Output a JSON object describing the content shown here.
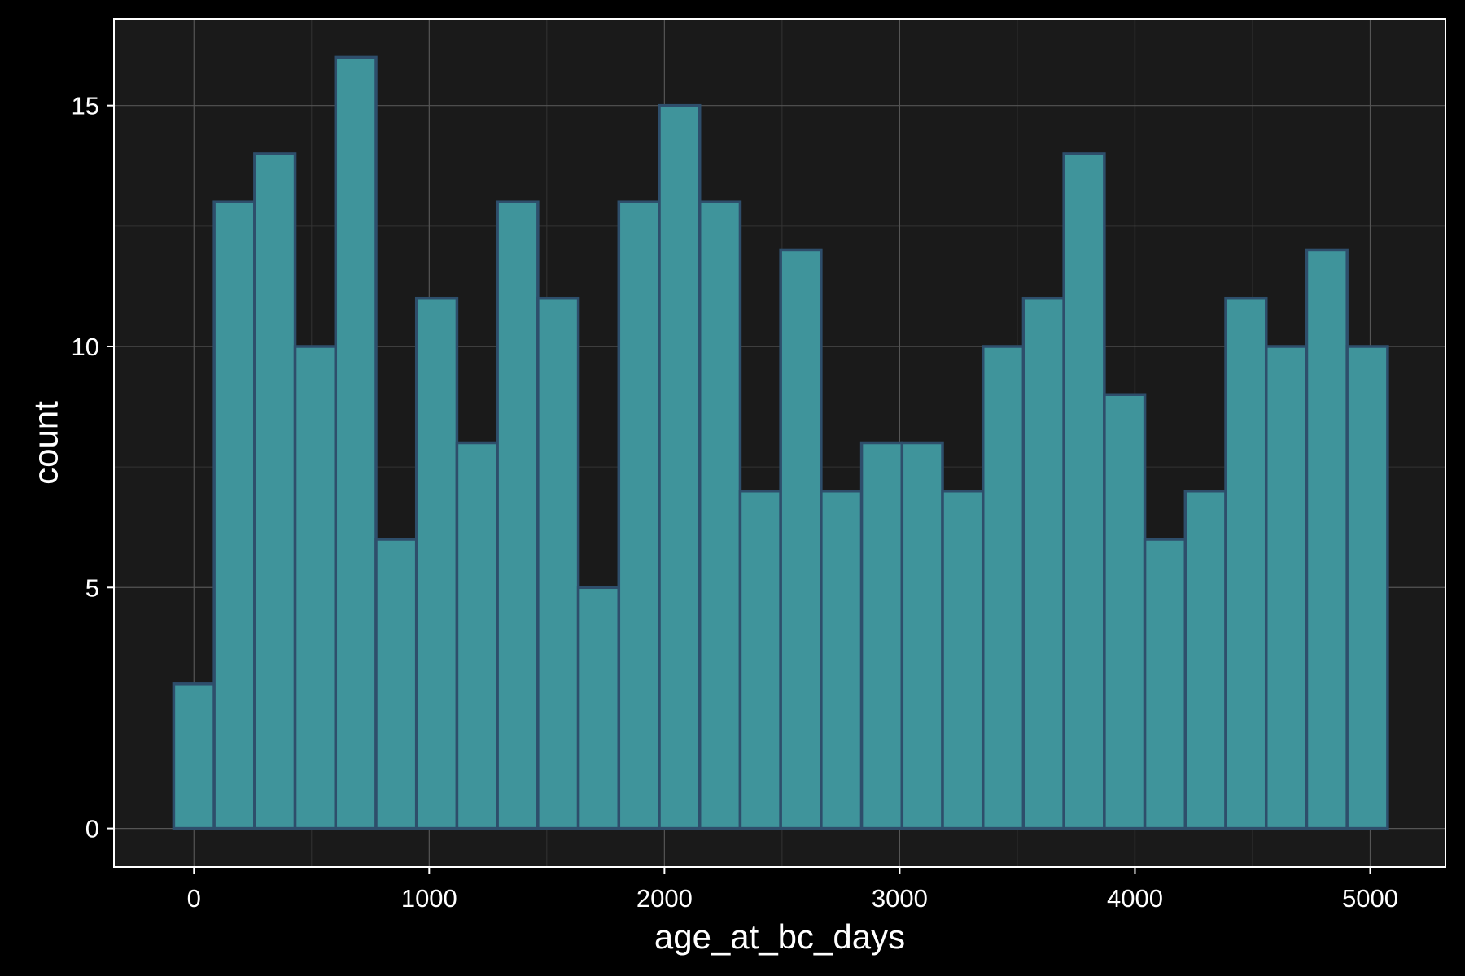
{
  "chart_data": {
    "type": "bar",
    "title": "",
    "xlabel": "age_at_bc_days",
    "ylabel": "count",
    "xlim": [
      -340,
      5320
    ],
    "ylim": [
      -0.8,
      16.8
    ],
    "x_ticks": [
      0,
      1000,
      2000,
      3000,
      4000,
      5000
    ],
    "x_tick_labels": [
      "0",
      "1000",
      "2000",
      "3000",
      "4000",
      "5000"
    ],
    "y_ticks": [
      0,
      5,
      10,
      15
    ],
    "y_tick_labels": [
      "0",
      "5",
      "10",
      "15"
    ],
    "grid": true,
    "legend": "none",
    "bin_width": 172,
    "bins": [
      {
        "x0": -86,
        "x1": 86,
        "count": 3
      },
      {
        "x0": 86,
        "x1": 258,
        "count": 13
      },
      {
        "x0": 258,
        "x1": 430,
        "count": 14
      },
      {
        "x0": 430,
        "x1": 602,
        "count": 10
      },
      {
        "x0": 602,
        "x1": 774,
        "count": 16
      },
      {
        "x0": 774,
        "x1": 946,
        "count": 6
      },
      {
        "x0": 946,
        "x1": 1118,
        "count": 11
      },
      {
        "x0": 1118,
        "x1": 1290,
        "count": 8
      },
      {
        "x0": 1290,
        "x1": 1462,
        "count": 13
      },
      {
        "x0": 1462,
        "x1": 1634,
        "count": 11
      },
      {
        "x0": 1634,
        "x1": 1806,
        "count": 5
      },
      {
        "x0": 1806,
        "x1": 1978,
        "count": 13
      },
      {
        "x0": 1978,
        "x1": 2150,
        "count": 15
      },
      {
        "x0": 2150,
        "x1": 2322,
        "count": 13
      },
      {
        "x0": 2322,
        "x1": 2494,
        "count": 7
      },
      {
        "x0": 2494,
        "x1": 2666,
        "count": 12
      },
      {
        "x0": 2666,
        "x1": 2838,
        "count": 7
      },
      {
        "x0": 2838,
        "x1": 3010,
        "count": 8
      },
      {
        "x0": 3010,
        "x1": 3182,
        "count": 8
      },
      {
        "x0": 3182,
        "x1": 3354,
        "count": 7
      },
      {
        "x0": 3354,
        "x1": 3526,
        "count": 10
      },
      {
        "x0": 3526,
        "x1": 3698,
        "count": 11
      },
      {
        "x0": 3698,
        "x1": 3870,
        "count": 14
      },
      {
        "x0": 3870,
        "x1": 4042,
        "count": 9
      },
      {
        "x0": 4042,
        "x1": 4214,
        "count": 6
      },
      {
        "x0": 4214,
        "x1": 4386,
        "count": 7
      },
      {
        "x0": 4386,
        "x1": 4558,
        "count": 11
      },
      {
        "x0": 4558,
        "x1": 4730,
        "count": 10
      },
      {
        "x0": 4730,
        "x1": 4902,
        "count": 12
      },
      {
        "x0": 4902,
        "x1": 5074,
        "count": 10
      }
    ]
  },
  "colors": {
    "background": "#000000",
    "panel": "#1a1a1a",
    "border": "#ffffff",
    "grid_major": "#555555",
    "grid_minor": "#333333",
    "bar_fill": "#3f949b",
    "bar_stroke": "#2e4e6b",
    "text": "#ffffff"
  }
}
